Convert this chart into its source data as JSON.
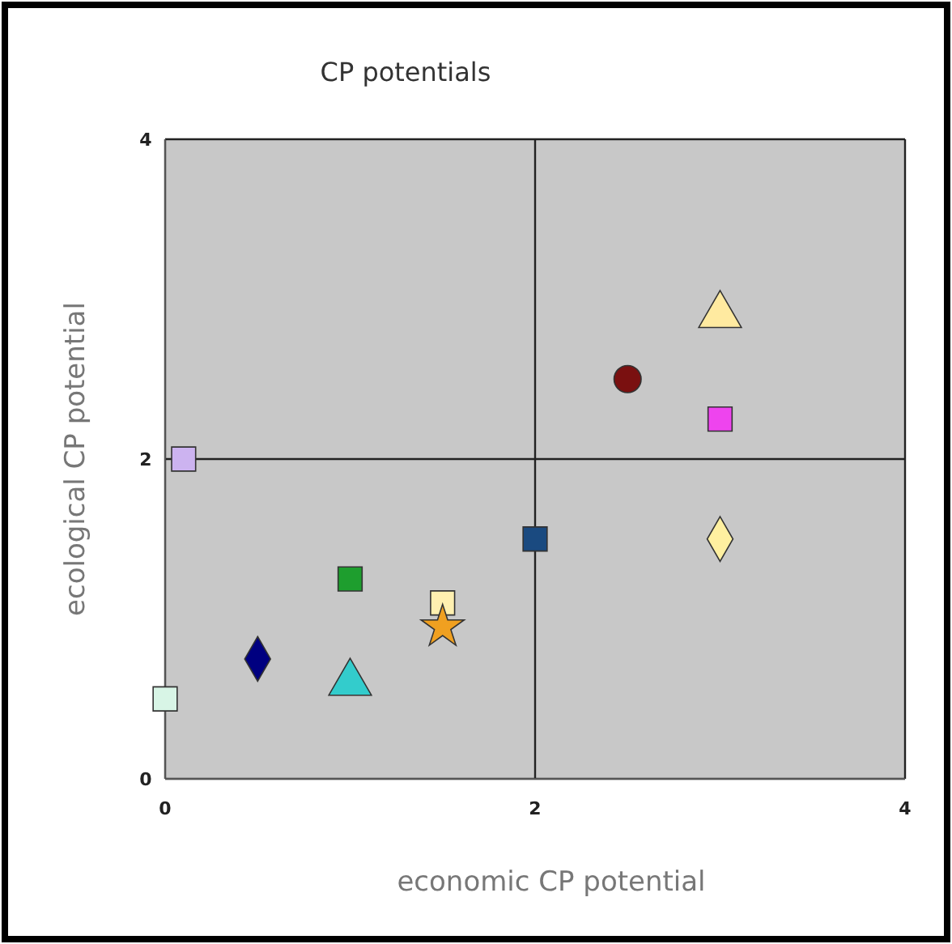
{
  "chart_data": {
    "type": "scatter",
    "title": "CP potentials",
    "xlabel": "economic CP potential",
    "ylabel": "ecological CP potential",
    "xlim": [
      0,
      4
    ],
    "ylim": [
      0,
      4
    ],
    "xticks": [
      0,
      2,
      4
    ],
    "yticks": [
      0,
      2,
      4
    ],
    "grid": true,
    "series": [
      {
        "color": "#ccb3f0",
        "marker": "square",
        "x": [
          0.1
        ],
        "values": [
          2
        ]
      },
      {
        "color": "#d8f5e6",
        "marker": "square",
        "x": [
          0
        ],
        "values": [
          0.5
        ]
      },
      {
        "color": "#000080",
        "marker": "diamond",
        "x": [
          0.5
        ],
        "values": [
          0.75
        ]
      },
      {
        "color": "#33cccc",
        "marker": "triangle",
        "x": [
          1
        ],
        "values": [
          0.6
        ]
      },
      {
        "color": "#1e9e2e",
        "marker": "square",
        "x": [
          1
        ],
        "values": [
          1.25
        ]
      },
      {
        "color": "#fff0b0",
        "marker": "square",
        "x": [
          1.5
        ],
        "values": [
          1.1
        ]
      },
      {
        "color": "#f0a020",
        "marker": "star",
        "x": [
          1.5
        ],
        "values": [
          0.95
        ]
      },
      {
        "color": "#1a4a80",
        "marker": "square",
        "x": [
          2
        ],
        "values": [
          1.5
        ]
      },
      {
        "color": "#7a1010",
        "marker": "circle",
        "x": [
          2.5
        ],
        "values": [
          2.5
        ]
      },
      {
        "color": "#ffeaa0",
        "marker": "triangle",
        "x": [
          3
        ],
        "values": [
          2.9
        ]
      },
      {
        "color": "#ee44ee",
        "marker": "square",
        "x": [
          3
        ],
        "values": [
          2.25
        ]
      },
      {
        "color": "#fff0a0",
        "marker": "diamond",
        "x": [
          3
        ],
        "values": [
          1.5
        ]
      }
    ]
  }
}
